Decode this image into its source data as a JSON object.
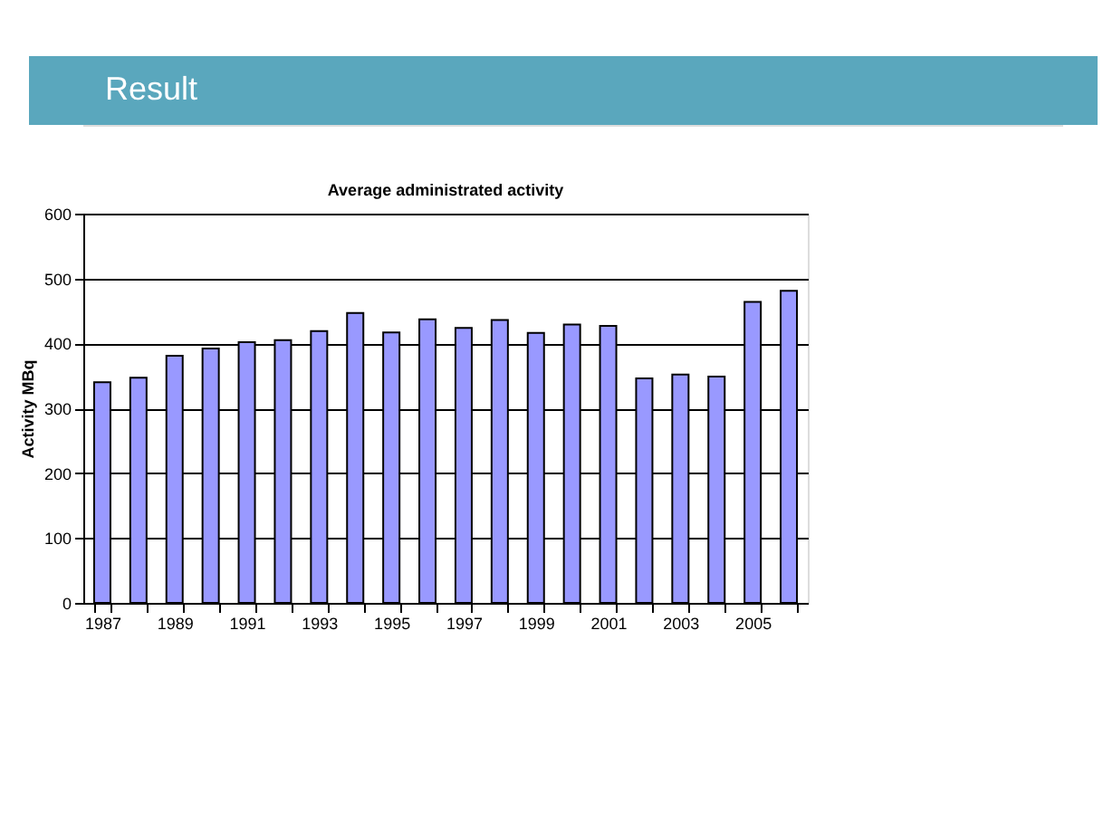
{
  "chart_data": {
    "type": "bar",
    "title": "Average administrated activity",
    "ylabel": "Activity MBq",
    "annotations": [
      "Result"
    ],
    "categories": [
      "1987",
      null,
      "1989",
      null,
      "1991",
      null,
      "1993",
      null,
      "1995",
      null,
      "1997",
      null,
      "1999",
      null,
      "2001",
      null,
      "2003",
      null,
      "2005",
      null
    ],
    "values": [
      340,
      347,
      381,
      392,
      402,
      405,
      419,
      447,
      417,
      437,
      424,
      436,
      416,
      429,
      427,
      346,
      352,
      349,
      464,
      481
    ],
    "color": "#9999ff",
    "ylim": [
      0,
      600
    ],
    "yticks": [
      0,
      100,
      200,
      300,
      400,
      500,
      600
    ],
    "grid": "y"
  }
}
